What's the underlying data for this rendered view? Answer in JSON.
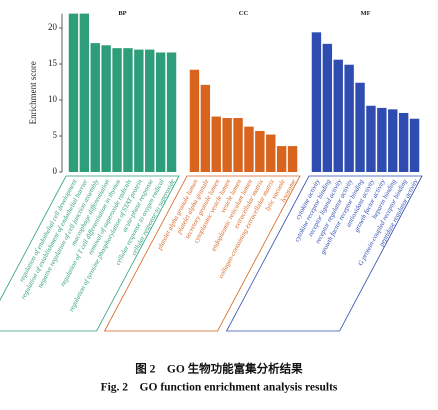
{
  "chart_data": {
    "type": "bar",
    "y_label": "Enrichment score",
    "ylim": [
      0,
      22
    ],
    "yticks": [
      0,
      5,
      10,
      15,
      20
    ],
    "groups": [
      {
        "name": "BP",
        "color": "#2e9e7a",
        "categories": [
          "regulation of endothelial cell development",
          "regulation of establishment of endothelial barrier",
          "negative regulation of cell junction assembly",
          "macrophage differentiation",
          "regulation of T cell differentiation in thymus",
          "removal of superoxide radicals",
          "regulation of tyrosine phosphorylation of STAT protein",
          "acute-phase response",
          "cellular response to oxygen radical",
          "cellular response to superoxide"
        ],
        "values": [
          22,
          22,
          17.9,
          17.6,
          17.2,
          17.2,
          17.0,
          17.0,
          16.6,
          16.6
        ]
      },
      {
        "name": "CC",
        "color": "#d8641e",
        "categories": [
          "platelet alpha granule lumen",
          "platelet alpha granule",
          "secretory granule lumen",
          "cytoplasmic vesicle lumen",
          "vesicle lumen",
          "endoplasmic reticulum lumen",
          "extracellular matrix",
          "collagen-containing extracellular matrix",
          "lytic vacuole",
          "lysosome"
        ],
        "values": [
          14.2,
          12.1,
          7.7,
          7.5,
          7.5,
          6.3,
          5.7,
          5.2,
          3.6,
          3.6
        ]
      },
      {
        "name": "MF",
        "color": "#2f4db0",
        "categories": [
          "cytokine activity",
          "cytokine receptor binding",
          "receptor ligand activity",
          "receptor regulator activity",
          "growth factor receptor binding",
          "antioxidant activity",
          "growth factor activity",
          "heparin binding",
          "G protein-coupled receptor binding",
          "peptidase regulator activity"
        ],
        "values": [
          19.4,
          17.8,
          15.6,
          14.9,
          12.4,
          9.2,
          8.9,
          8.7,
          8.2,
          7.4
        ]
      }
    ]
  },
  "caption": {
    "zh": "图 2　GO 生物功能富集分析结果",
    "en": "Fig. 2　GO function enrichment analysis results"
  }
}
